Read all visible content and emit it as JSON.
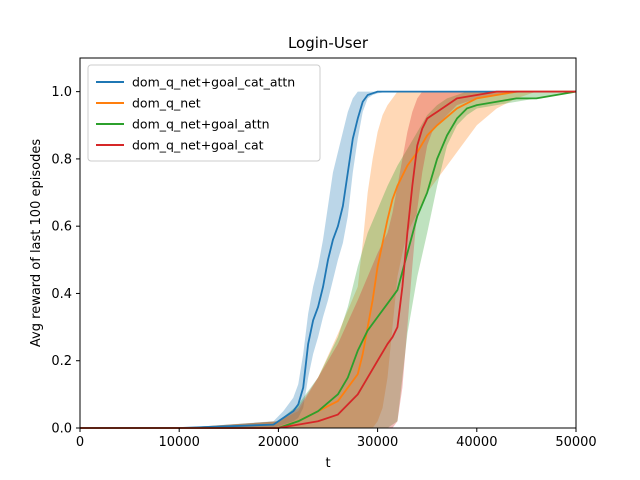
{
  "chart_data": {
    "type": "line",
    "title": "Login-User",
    "xlabel": "t",
    "ylabel": "Avg reward of last 100 episodes",
    "xlim": [
      0,
      50000
    ],
    "ylim": [
      0,
      1.1
    ],
    "xticks": [
      0,
      10000,
      20000,
      30000,
      40000,
      50000
    ],
    "yticks": [
      0.0,
      0.2,
      0.4,
      0.6,
      0.8,
      1.0
    ],
    "xtick_labels": [
      "0",
      "10000",
      "20000",
      "30000",
      "40000",
      "50000"
    ],
    "ytick_labels": [
      "0.0",
      "0.2",
      "0.4",
      "0.6",
      "0.8",
      "1.0"
    ],
    "grid": false,
    "legend_position": "upper-left",
    "series": [
      {
        "name": "dom_q_net+goal_cat_attn",
        "color": "#1f77b4",
        "x": [
          0,
          10000,
          19500,
          20500,
          21500,
          22000,
          22500,
          23000,
          23500,
          24000,
          24500,
          25000,
          25500,
          26000,
          26500,
          27000,
          27500,
          28000,
          28500,
          29000,
          29500,
          30000,
          31000,
          33000,
          40000,
          50000
        ],
        "y": [
          0,
          0,
          0.01,
          0.03,
          0.05,
          0.07,
          0.12,
          0.25,
          0.32,
          0.36,
          0.42,
          0.5,
          0.56,
          0.6,
          0.66,
          0.76,
          0.86,
          0.92,
          0.97,
          0.99,
          0.995,
          1.0,
          1.0,
          1.0,
          1.0,
          1.0
        ],
        "lower": [
          0,
          0,
          0,
          0.01,
          0.02,
          0.03,
          0.06,
          0.15,
          0.22,
          0.27,
          0.33,
          0.38,
          0.44,
          0.5,
          0.55,
          0.63,
          0.76,
          0.86,
          0.94,
          0.98,
          0.99,
          0.995,
          1.0,
          1.0,
          1.0,
          1.0
        ],
        "upper": [
          0,
          0,
          0.02,
          0.05,
          0.09,
          0.13,
          0.22,
          0.34,
          0.42,
          0.48,
          0.56,
          0.66,
          0.76,
          0.82,
          0.88,
          0.94,
          0.98,
          1.0,
          1.0,
          1.0,
          1.0,
          1.0,
          1.0,
          1.0,
          1.0,
          1.0
        ]
      },
      {
        "name": "dom_q_net",
        "color": "#ff7f0e",
        "x": [
          0,
          10000,
          20000,
          22000,
          24000,
          26000,
          28000,
          28500,
          29000,
          29500,
          30000,
          30500,
          31000,
          31500,
          32000,
          32500,
          33000,
          34000,
          35000,
          36000,
          38000,
          40000,
          42000,
          44000,
          46000,
          48000,
          50000
        ],
        "y": [
          0,
          0,
          0.0,
          0.02,
          0.05,
          0.08,
          0.16,
          0.22,
          0.3,
          0.38,
          0.48,
          0.55,
          0.62,
          0.68,
          0.72,
          0.75,
          0.78,
          0.82,
          0.87,
          0.9,
          0.95,
          0.98,
          0.99,
          1.0,
          1.0,
          1.0,
          1.0
        ],
        "lower": [
          0,
          0,
          0,
          0,
          0,
          0,
          0,
          0,
          0,
          0,
          0.02,
          0.06,
          0.15,
          0.3,
          0.45,
          0.52,
          0.58,
          0.64,
          0.7,
          0.74,
          0.82,
          0.9,
          0.95,
          0.98,
          1.0,
          1.0,
          1.0
        ],
        "upper": [
          0,
          0,
          0.02,
          0.05,
          0.15,
          0.28,
          0.42,
          0.55,
          0.7,
          0.8,
          0.88,
          0.93,
          0.96,
          0.98,
          1.0,
          1.0,
          1.0,
          1.0,
          1.0,
          1.0,
          1.0,
          1.0,
          1.0,
          1.0,
          1.0,
          1.0,
          1.0
        ]
      },
      {
        "name": "dom_q_net+goal_attn",
        "color": "#2ca02c",
        "x": [
          0,
          10000,
          20000,
          22000,
          24000,
          26000,
          27000,
          28000,
          29000,
          30000,
          31000,
          32000,
          33000,
          34000,
          35000,
          36000,
          37000,
          38000,
          39000,
          40000,
          42000,
          44000,
          46000,
          48000,
          50000
        ],
        "y": [
          0,
          0,
          0.0,
          0.02,
          0.05,
          0.1,
          0.15,
          0.23,
          0.29,
          0.33,
          0.37,
          0.41,
          0.52,
          0.63,
          0.7,
          0.8,
          0.87,
          0.92,
          0.95,
          0.96,
          0.97,
          0.98,
          0.98,
          0.99,
          1.0
        ],
        "lower": [
          0,
          0,
          0,
          0,
          0,
          0,
          0,
          0,
          0,
          0,
          0,
          0.02,
          0.28,
          0.45,
          0.58,
          0.72,
          0.84,
          0.9,
          0.93,
          0.95,
          0.96,
          0.97,
          0.98,
          0.99,
          1.0
        ],
        "upper": [
          0,
          0,
          0.02,
          0.07,
          0.15,
          0.27,
          0.36,
          0.48,
          0.58,
          0.65,
          0.72,
          0.78,
          0.83,
          0.88,
          0.93,
          0.96,
          0.98,
          0.99,
          1.0,
          1.0,
          1.0,
          1.0,
          1.0,
          1.0,
          1.0
        ]
      },
      {
        "name": "dom_q_net+goal_cat",
        "color": "#d62728",
        "x": [
          0,
          10000,
          20000,
          22000,
          24000,
          26000,
          28000,
          30000,
          31000,
          31500,
          32000,
          32500,
          33000,
          33500,
          34000,
          34500,
          35000,
          35500,
          36000,
          37000,
          38000,
          40000,
          42000,
          45000,
          48000,
          50000
        ],
        "y": [
          0,
          0,
          0.0,
          0.01,
          0.02,
          0.04,
          0.1,
          0.2,
          0.25,
          0.27,
          0.3,
          0.42,
          0.58,
          0.72,
          0.84,
          0.89,
          0.92,
          0.93,
          0.94,
          0.96,
          0.98,
          0.99,
          1.0,
          1.0,
          1.0,
          1.0
        ],
        "lower": [
          0,
          0,
          0,
          0,
          0,
          0,
          0,
          0,
          0,
          0,
          0.02,
          0.12,
          0.3,
          0.48,
          0.65,
          0.76,
          0.84,
          0.88,
          0.9,
          0.93,
          0.96,
          0.98,
          0.99,
          1.0,
          1.0,
          1.0
        ],
        "upper": [
          0,
          0,
          0.02,
          0.06,
          0.15,
          0.25,
          0.38,
          0.52,
          0.58,
          0.64,
          0.72,
          0.8,
          0.88,
          0.94,
          0.98,
          1.0,
          1.0,
          1.0,
          1.0,
          1.0,
          1.0,
          1.0,
          1.0,
          1.0,
          1.0,
          1.0
        ]
      }
    ]
  }
}
